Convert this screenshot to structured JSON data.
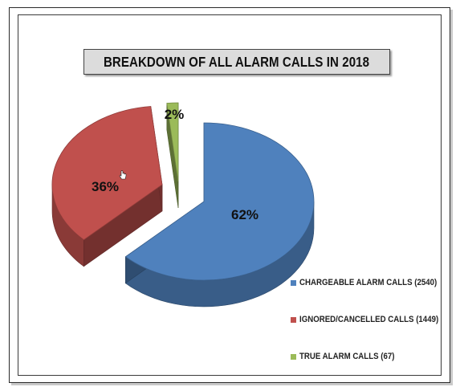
{
  "chart_data": {
    "type": "pie",
    "title": "BREAKDOWN OF ALL ALARM CALLS IN 2018",
    "categories": [
      "CHARGEABLE ALARM CALLS (2540)",
      "IGNORED/CANCELLED CALLS (1449)",
      "TRUE ALARM CALLS (67)"
    ],
    "values": [
      2540,
      1449,
      67
    ],
    "percent_labels": [
      "62%",
      "36%",
      "2%"
    ],
    "colors": [
      "#4f81bd",
      "#c0504d",
      "#9bbb59"
    ],
    "legend": "right",
    "style": "3d exploded"
  },
  "icons": {
    "cursor": "hand-pointer-icon"
  }
}
